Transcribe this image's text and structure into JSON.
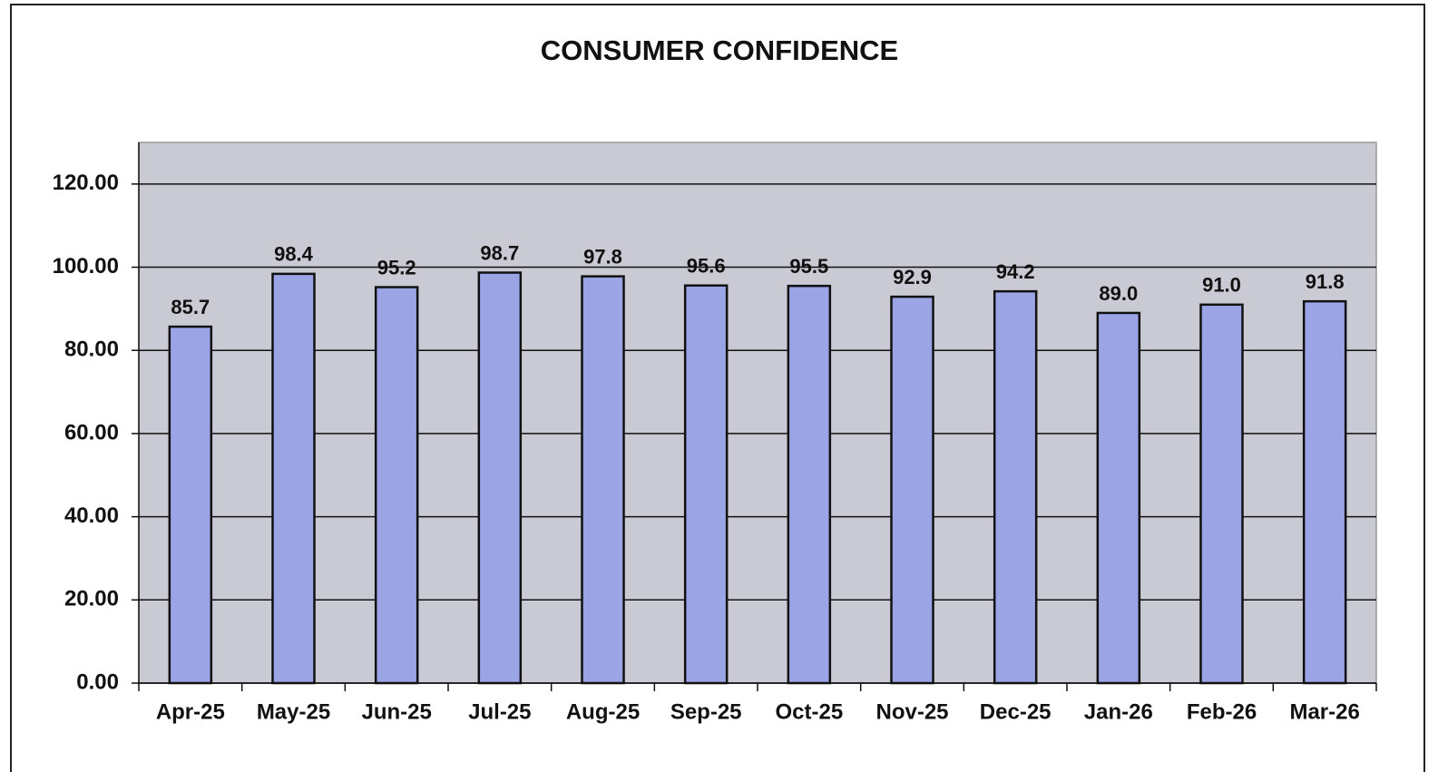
{
  "chart_data": {
    "type": "bar",
    "title": "CONSUMER CONFIDENCE",
    "categories": [
      "Apr-25",
      "May-25",
      "Jun-25",
      "Jul-25",
      "Aug-25",
      "Sep-25",
      "Oct-25",
      "Nov-25",
      "Dec-25",
      "Jan-26",
      "Feb-26",
      "Mar-26"
    ],
    "values": [
      85.7,
      98.4,
      95.2,
      98.7,
      97.8,
      95.6,
      95.5,
      92.9,
      94.2,
      89.0,
      91.0,
      91.8
    ],
    "value_labels": [
      "85.7",
      "98.4",
      "95.2",
      "98.7",
      "97.8",
      "95.6",
      "95.5",
      "92.9",
      "94.2",
      "89.0",
      "91.0",
      "91.8"
    ],
    "color": "#9ba5e6",
    "plot_background": "#c9cad4",
    "ylim": [
      0,
      130
    ],
    "yticks": [
      {
        "value": 0,
        "label": "0.00"
      },
      {
        "value": 20,
        "label": "20.00"
      },
      {
        "value": 40,
        "label": "40.00"
      },
      {
        "value": 60,
        "label": "60.00"
      },
      {
        "value": 80,
        "label": "80.00"
      },
      {
        "value": 100,
        "label": "100.00"
      },
      {
        "value": 120,
        "label": "120.00"
      }
    ],
    "grid": true
  }
}
